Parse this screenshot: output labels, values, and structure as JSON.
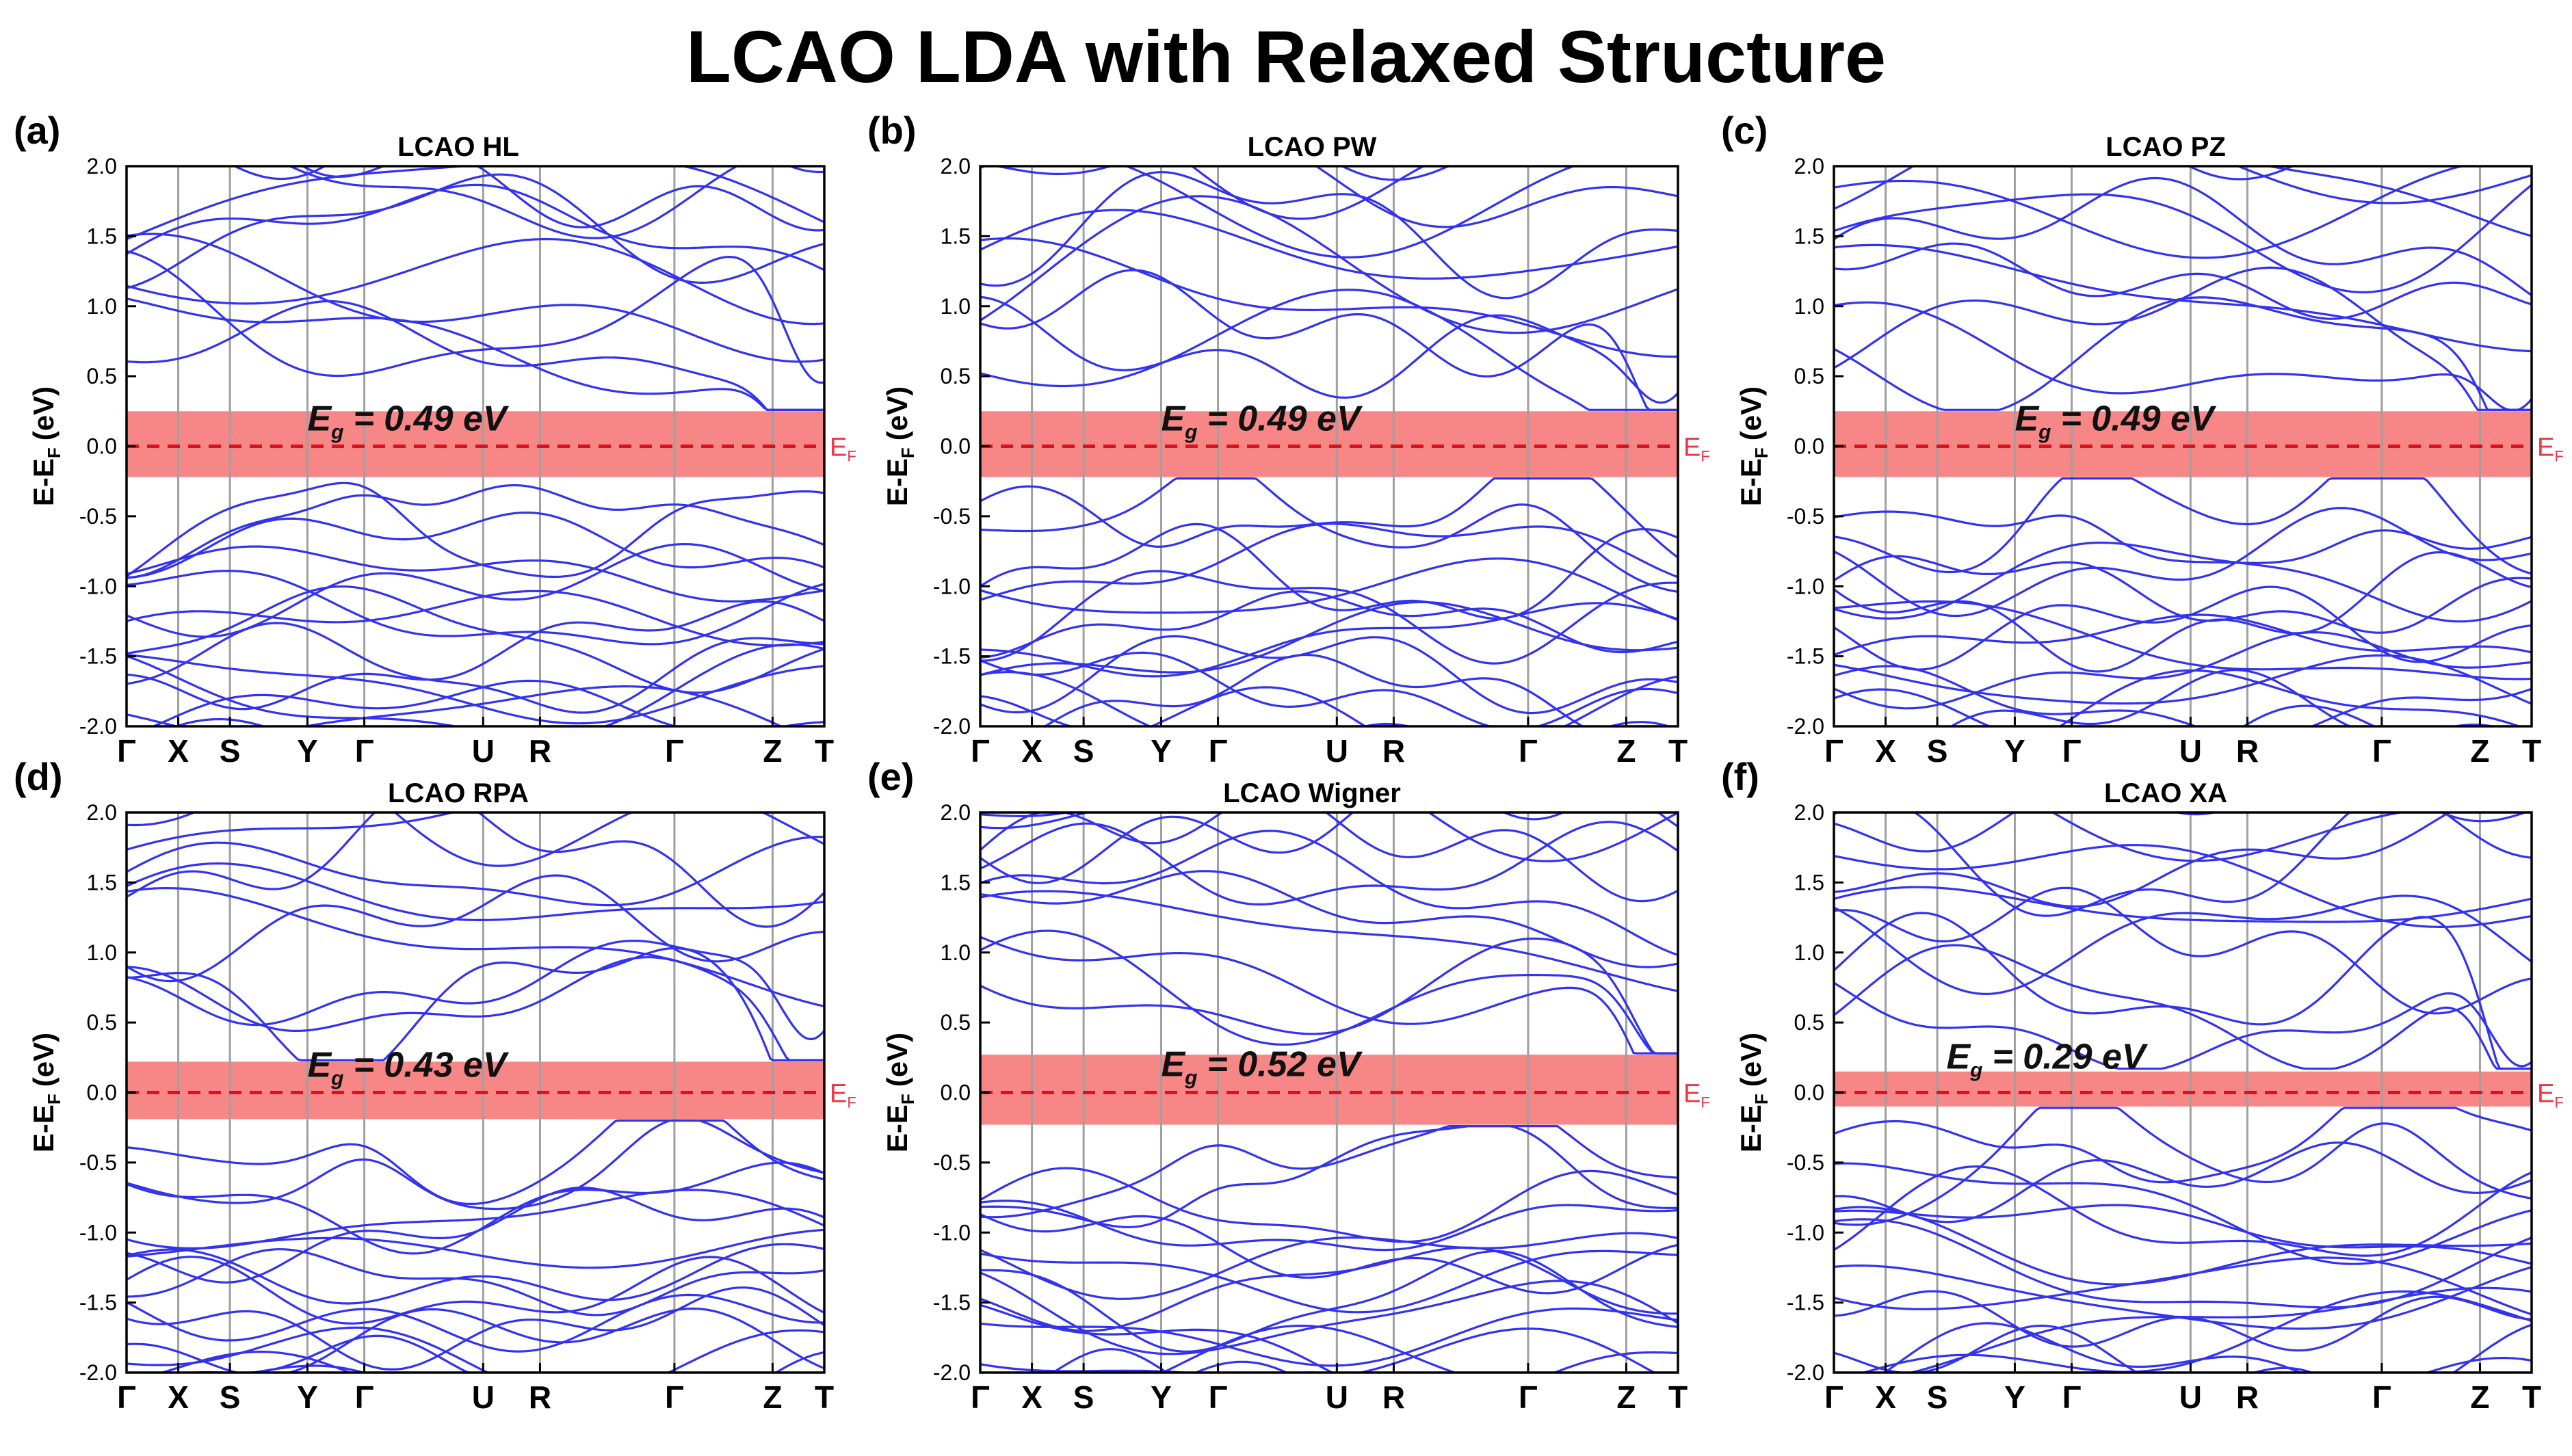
{
  "title": "LCAO LDA with Relaxed Structure",
  "colors": {
    "band": "#3333ee",
    "gap_fill": "#f78686",
    "fermi_line": "#e0101a",
    "vline": "#a0a0a0",
    "axis": "#000000",
    "ef_label": "#ee3344"
  },
  "chart_data": [
    {
      "type": "line",
      "panel_label": "(a)",
      "title": "LCAO HL",
      "xlabel": "",
      "ylabel": "E-E",
      "ylabel_sub": "F",
      "ylabel_unit": "(eV)",
      "ylim": [
        -2.0,
        2.0
      ],
      "yticks": [
        "2.0",
        "1.5",
        "1.0",
        "0.5",
        "0.0",
        "-0.5",
        "-1.0",
        "-1.5",
        "-2.0"
      ],
      "kpoints": [
        "Γ",
        "X",
        "S",
        "Y",
        "Γ",
        "U",
        "R",
        "Γ",
        "Z",
        "T"
      ],
      "kpositions": [
        0,
        0.1,
        0.2,
        0.35,
        0.46,
        0.69,
        0.8,
        1.06,
        1.25,
        1.35
      ],
      "gap_value": 0.49,
      "gap_text": "= 0.49 eV",
      "gap_symbol": "E",
      "gap_sub": "g",
      "band_gap_region": [
        -0.22,
        0.25
      ],
      "fermi_label": "E",
      "fermi_sub": "F",
      "cbm_k": 1.33,
      "vbm_k": 1.06,
      "cbm": 0.26,
      "vbm": -0.23
    },
    {
      "type": "line",
      "panel_label": "(b)",
      "title": "LCAO PW",
      "xlabel": "",
      "ylabel": "E-E",
      "ylabel_sub": "F",
      "ylabel_unit": "(eV)",
      "ylim": [
        -2.0,
        2.0
      ],
      "yticks": [
        "2.0",
        "1.5",
        "1.0",
        "0.5",
        "0.0",
        "-0.5",
        "-1.0",
        "-1.5",
        "-2.0"
      ],
      "kpoints": [
        "Γ",
        "X",
        "S",
        "Y",
        "Γ",
        "U",
        "R",
        "Γ",
        "Z",
        "T"
      ],
      "kpositions": [
        0,
        0.1,
        0.2,
        0.35,
        0.46,
        0.69,
        0.8,
        1.06,
        1.25,
        1.35
      ],
      "gap_value": 0.49,
      "gap_text": "= 0.49 eV",
      "gap_symbol": "E",
      "gap_sub": "g",
      "band_gap_region": [
        -0.22,
        0.25
      ],
      "fermi_label": "E",
      "fermi_sub": "F",
      "cbm_k": 1.33,
      "vbm_k": 1.06,
      "cbm": 0.26,
      "vbm": -0.23
    },
    {
      "type": "line",
      "panel_label": "(c)",
      "title": "LCAO PZ",
      "xlabel": "",
      "ylabel": "E-E",
      "ylabel_sub": "F",
      "ylabel_unit": "(eV)",
      "ylim": [
        -2.0,
        2.0
      ],
      "yticks": [
        "2.0",
        "1.5",
        "1.0",
        "0.5",
        "0.0",
        "-0.5",
        "-1.0",
        "-1.5",
        "-2.0"
      ],
      "kpoints": [
        "Γ",
        "X",
        "S",
        "Y",
        "Γ",
        "U",
        "R",
        "Γ",
        "Z",
        "T"
      ],
      "kpositions": [
        0,
        0.1,
        0.2,
        0.35,
        0.46,
        0.69,
        0.8,
        1.06,
        1.25,
        1.35
      ],
      "gap_value": 0.49,
      "gap_text": "= 0.49 eV",
      "gap_symbol": "E",
      "gap_sub": "g",
      "band_gap_region": [
        -0.22,
        0.25
      ],
      "fermi_label": "E",
      "fermi_sub": "F",
      "cbm_k": 1.33,
      "vbm_k": 1.06,
      "cbm": 0.26,
      "vbm": -0.23
    },
    {
      "type": "line",
      "panel_label": "(d)",
      "title": "LCAO RPA",
      "xlabel": "",
      "ylabel": "E-E",
      "ylabel_sub": "F",
      "ylabel_unit": "(eV)",
      "ylim": [
        -2.0,
        2.0
      ],
      "yticks": [
        "2.0",
        "1.5",
        "1.0",
        "0.5",
        "0.0",
        "-0.5",
        "-1.0",
        "-1.5",
        "-2.0"
      ],
      "kpoints": [
        "Γ",
        "X",
        "S",
        "Y",
        "Γ",
        "U",
        "R",
        "Γ",
        "Z",
        "T"
      ],
      "kpositions": [
        0,
        0.1,
        0.2,
        0.35,
        0.46,
        0.69,
        0.8,
        1.06,
        1.25,
        1.35
      ],
      "gap_value": 0.43,
      "gap_text": "= 0.43 eV",
      "gap_symbol": "E",
      "gap_sub": "g",
      "band_gap_region": [
        -0.19,
        0.22
      ],
      "fermi_label": "E",
      "fermi_sub": "F",
      "cbm_k": 1.33,
      "vbm_k": 1.06,
      "cbm": 0.23,
      "vbm": -0.2
    },
    {
      "type": "line",
      "panel_label": "(e)",
      "title": "LCAO Wigner",
      "xlabel": "",
      "ylabel": "E-E",
      "ylabel_sub": "F",
      "ylabel_unit": "(eV)",
      "ylim": [
        -2.0,
        2.0
      ],
      "yticks": [
        "2.0",
        "1.5",
        "1.0",
        "0.5",
        "0.0",
        "-0.5",
        "-1.0",
        "-1.5",
        "-2.0"
      ],
      "kpoints": [
        "Γ",
        "X",
        "S",
        "Y",
        "Γ",
        "U",
        "R",
        "Γ",
        "Z",
        "T"
      ],
      "kpositions": [
        0,
        0.1,
        0.2,
        0.35,
        0.46,
        0.69,
        0.8,
        1.06,
        1.25,
        1.35
      ],
      "gap_value": 0.52,
      "gap_text": "= 0.52 eV",
      "gap_symbol": "E",
      "gap_sub": "g",
      "band_gap_region": [
        -0.23,
        0.27
      ],
      "fermi_label": "E",
      "fermi_sub": "F",
      "cbm_k": 1.33,
      "vbm_k": 1.06,
      "cbm": 0.28,
      "vbm": -0.24
    },
    {
      "type": "line",
      "panel_label": "(f)",
      "title": "LCAO XA",
      "xlabel": "",
      "ylabel": "E-E",
      "ylabel_sub": "F",
      "ylabel_unit": "(eV)",
      "ylim": [
        -2.0,
        2.0
      ],
      "yticks": [
        "2.0",
        "1.5",
        "1.0",
        "0.5",
        "0.0",
        "-0.5",
        "-1.0",
        "-1.5",
        "-2.0"
      ],
      "kpoints": [
        "Γ",
        "X",
        "S",
        "Y",
        "Γ",
        "U",
        "R",
        "Γ",
        "Z",
        "T"
      ],
      "kpositions": [
        0,
        0.1,
        0.2,
        0.35,
        0.46,
        0.69,
        0.8,
        1.06,
        1.25,
        1.35
      ],
      "gap_value": 0.29,
      "gap_text": "= 0.29 eV",
      "gap_symbol": "E",
      "gap_sub": "g",
      "band_gap_region": [
        -0.1,
        0.15
      ],
      "fermi_label": "E",
      "fermi_sub": "F",
      "cbm_k": 1.33,
      "vbm_k": 1.06,
      "cbm": 0.17,
      "vbm": -0.11
    }
  ]
}
